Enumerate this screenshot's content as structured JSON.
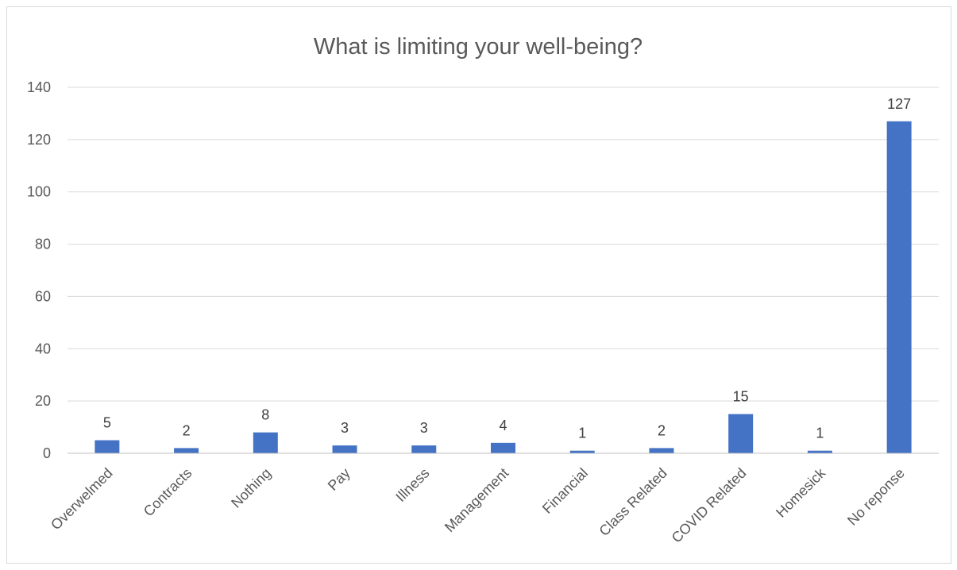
{
  "chart_data": {
    "type": "bar",
    "title": "What is limiting your well-being?",
    "xlabel": "",
    "ylabel": "",
    "categories": [
      "Overwelmed",
      "Contracts",
      "Nothing",
      "Pay",
      "Illness",
      "Management",
      "Financial",
      "Class Related",
      "COVID Related",
      "Homesick",
      "No reponse"
    ],
    "values": [
      5,
      2,
      8,
      3,
      3,
      4,
      1,
      2,
      15,
      1,
      127
    ],
    "ylim": [
      0,
      140
    ],
    "yticks": [
      "0",
      "20",
      "40",
      "60",
      "80",
      "100",
      "120",
      "140"
    ],
    "grid": true,
    "legend": "none",
    "bar_color": "#4472C4",
    "data_labels": true
  }
}
